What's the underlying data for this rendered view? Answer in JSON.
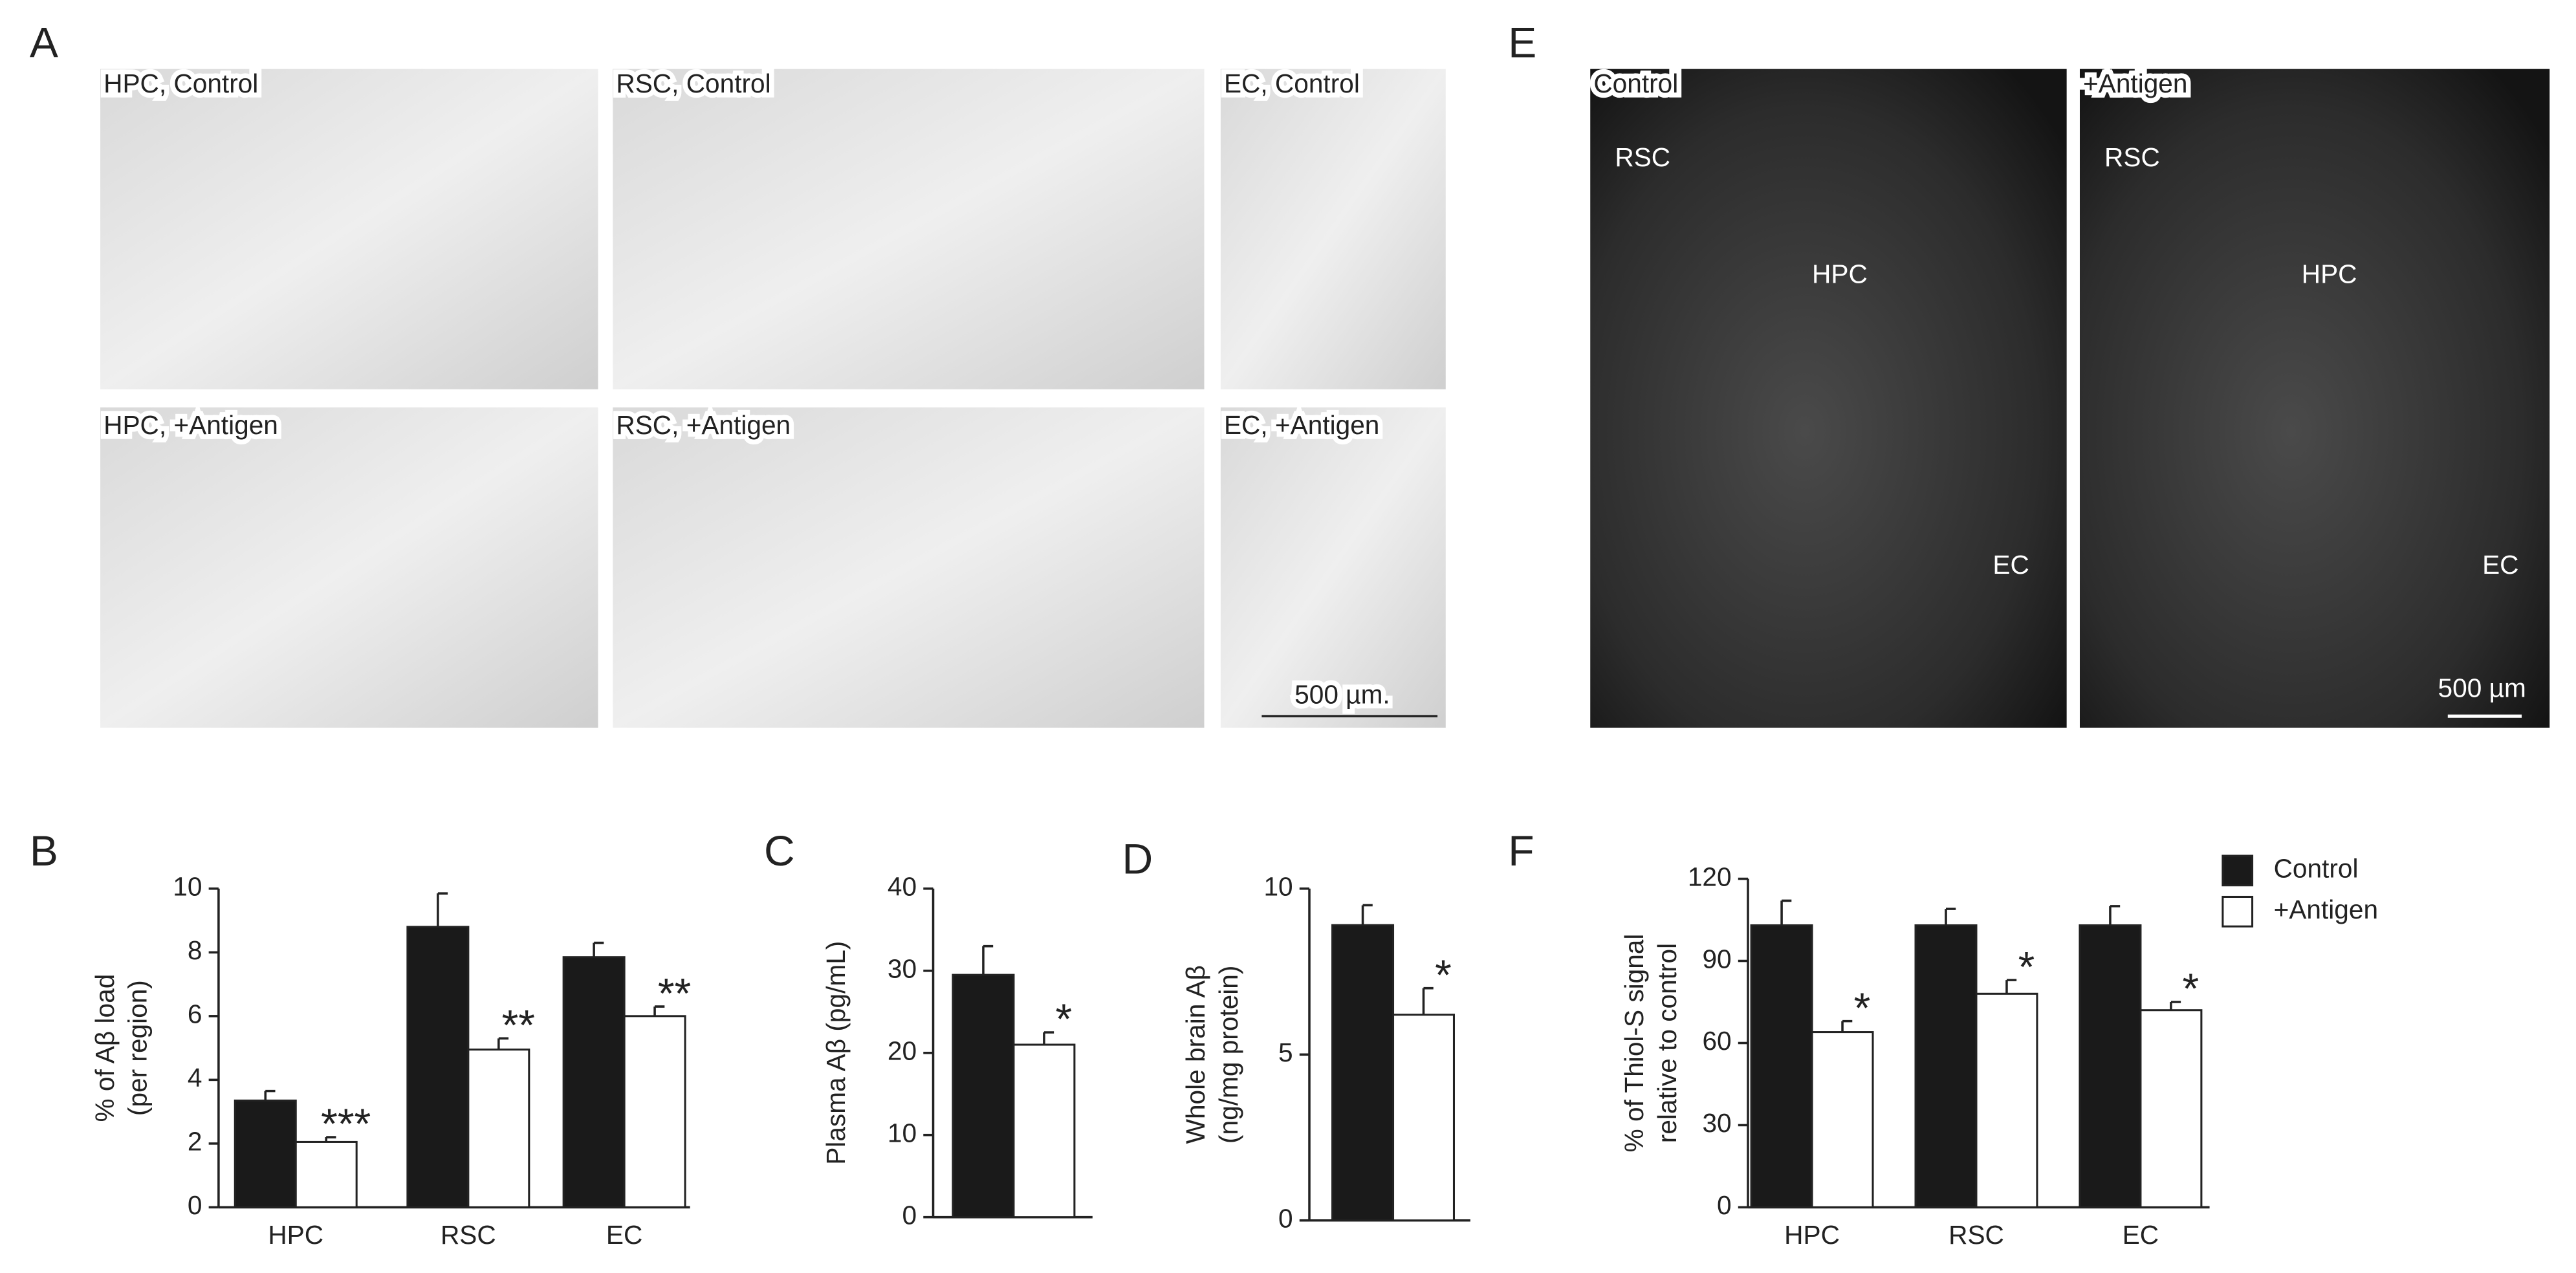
{
  "image_panels": [
    {
      "panel": "A",
      "scale_bar": "500 µm.",
      "images": [
        {
          "label": "HPC, Control"
        },
        {
          "label": "RSC, Control"
        },
        {
          "label": "EC, Control"
        },
        {
          "label": "HPC, +Antigen"
        },
        {
          "label": "RSC, +Antigen"
        },
        {
          "label": "EC, +Antigen"
        }
      ]
    },
    {
      "panel": "E",
      "scale_bar": "500 µm",
      "images": [
        {
          "label": "Control",
          "regions": [
            "RSC",
            "HPC",
            "EC"
          ]
        },
        {
          "label": "+Antigen",
          "regions": [
            "RSC",
            "HPC",
            "EC"
          ]
        }
      ]
    }
  ],
  "chart_data": [
    {
      "type": "bar",
      "panel": "B",
      "ylabel": [
        "% of Aβ load",
        "(per region)"
      ],
      "categories": [
        "HPC",
        "RSC",
        "EC"
      ],
      "ylim": [
        0,
        10
      ],
      "yticks": [
        0,
        2,
        4,
        6,
        8,
        10
      ],
      "series": [
        {
          "name": "Control",
          "color": "#1a1a1a",
          "values": [
            3.35,
            8.8,
            7.85
          ],
          "errors": [
            0.3,
            1.05,
            0.45
          ]
        },
        {
          "name": "+Antigen",
          "color": "#ffffff",
          "values": [
            2.05,
            4.95,
            6.0
          ],
          "errors": [
            0.15,
            0.35,
            0.3
          ]
        }
      ],
      "significance": [
        "***",
        "**",
        "**"
      ],
      "legend": false
    },
    {
      "type": "bar",
      "panel": "C",
      "ylabel": [
        "Plasma Aβ (pg/mL)"
      ],
      "categories": [
        null
      ],
      "ylim": [
        0,
        40
      ],
      "yticks": [
        0,
        10,
        20,
        30,
        40
      ],
      "series": [
        {
          "name": "Control",
          "color": "#1a1a1a",
          "values": [
            29.5
          ],
          "errors": [
            3.5
          ]
        },
        {
          "name": "+Antigen",
          "color": "#ffffff",
          "values": [
            21
          ],
          "errors": [
            1.5
          ]
        }
      ],
      "significance": [
        "*"
      ],
      "legend": false
    },
    {
      "type": "bar",
      "panel": "D",
      "ylabel": [
        "Whole brain Aβ",
        "(ng/mg protein)"
      ],
      "categories": [
        null
      ],
      "ylim": [
        0,
        10
      ],
      "yticks": [
        0,
        5,
        10
      ],
      "series": [
        {
          "name": "Control",
          "color": "#1a1a1a",
          "values": [
            8.9
          ],
          "errors": [
            0.6
          ]
        },
        {
          "name": "+Antigen",
          "color": "#ffffff",
          "values": [
            6.2
          ],
          "errors": [
            0.8
          ]
        }
      ],
      "significance": [
        "*"
      ],
      "legend": false
    },
    {
      "type": "bar",
      "panel": "F",
      "ylabel": [
        "% of Thiol-S signal",
        "relative to control"
      ],
      "categories": [
        "HPC",
        "RSC",
        "EC"
      ],
      "ylim": [
        0,
        120
      ],
      "yticks": [
        0,
        30,
        60,
        90,
        120
      ],
      "series": [
        {
          "name": "Control",
          "color": "#1a1a1a",
          "values": [
            103,
            103,
            103
          ],
          "errors": [
            9,
            6,
            7
          ]
        },
        {
          "name": "+Antigen",
          "color": "#ffffff",
          "values": [
            64,
            78,
            72
          ],
          "errors": [
            4,
            5,
            3
          ]
        }
      ],
      "significance": [
        "*",
        "*",
        "*"
      ],
      "legend": true
    }
  ]
}
